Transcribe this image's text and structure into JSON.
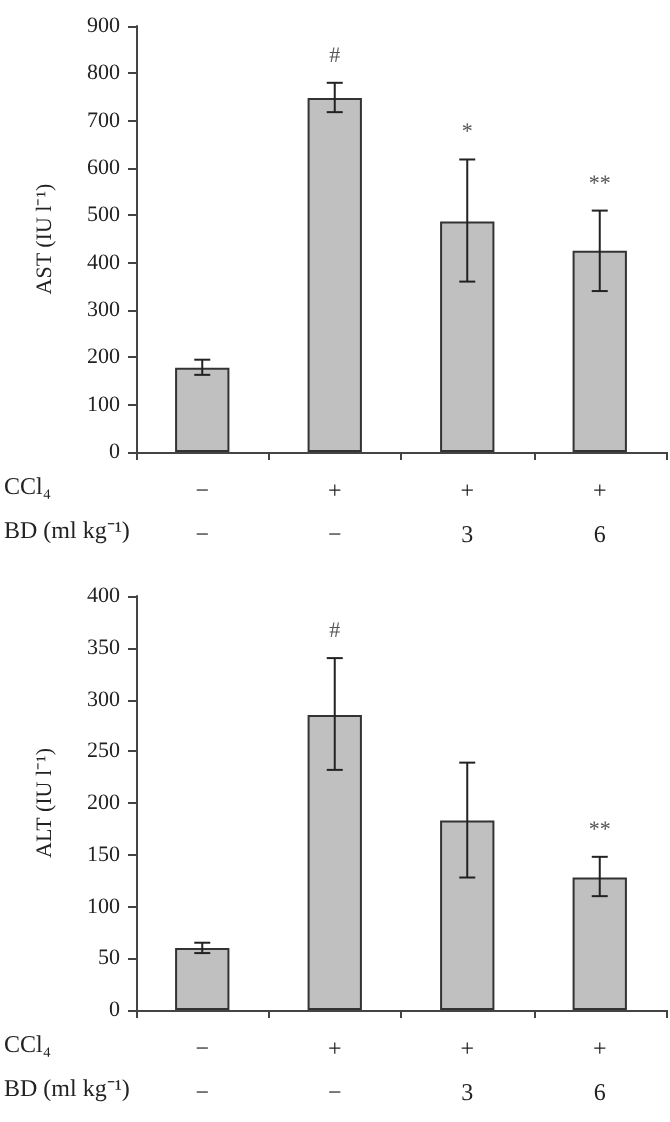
{
  "chart_data": [
    {
      "type": "bar",
      "ylabel": "AST (IU l⁻¹)",
      "categories": [
        "−\n−",
        "+\n−",
        "+\n3",
        "+\n6"
      ],
      "values": [
        178,
        748,
        487,
        425
      ],
      "color": "#c0c0c0",
      "errors": [
        [
          163,
          195
        ],
        [
          718,
          780
        ],
        [
          360,
          618
        ],
        [
          340,
          510
        ]
      ],
      "ylim": [
        0,
        900
      ],
      "yticks": [
        0,
        100,
        200,
        300,
        400,
        500,
        600,
        700,
        800,
        900
      ],
      "annotations": [
        {
          "text": "#",
          "x": "+\n−",
          "y": 780
        },
        {
          "text": "*",
          "x": "+\n3",
          "y": 618
        },
        {
          "text": "**",
          "x": "+\n6",
          "y": 510
        },
        "CCl₄",
        "BD (ml kg⁻¹)"
      ]
    },
    {
      "type": "bar",
      "ylabel": "ALT (IU l⁻¹)",
      "categories": [
        "−\n−",
        "+\n−",
        "+\n3",
        "+\n6"
      ],
      "values": [
        60,
        285,
        183,
        128
      ],
      "color": "#c0c0c0",
      "errors": [
        [
          55,
          65
        ],
        [
          232,
          340
        ],
        [
          128,
          239
        ],
        [
          110,
          148
        ]
      ],
      "ylim": [
        0,
        400
      ],
      "yticks": [
        0,
        50,
        100,
        150,
        200,
        250,
        300,
        350,
        400
      ],
      "annotations": [
        {
          "text": "#",
          "x": "+\n−",
          "y": 340
        },
        {
          "text": "**",
          "x": "+\n6",
          "y": 148
        },
        "CCl₄",
        "BD (ml kg⁻¹)"
      ]
    }
  ]
}
